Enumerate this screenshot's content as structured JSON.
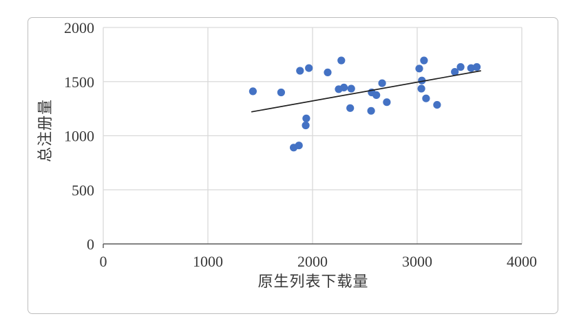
{
  "chart_data": {
    "type": "scatter",
    "xlabel": "原生列表下载量",
    "ylabel": "总注册量",
    "xlim": [
      0,
      4000
    ],
    "ylim": [
      0,
      2000
    ],
    "x_ticks": [
      0,
      1000,
      2000,
      3000,
      4000
    ],
    "y_ticks": [
      0,
      500,
      1000,
      1500,
      2000
    ],
    "grid": true,
    "legend": false,
    "series": [
      {
        "points": [
          [
            1430,
            1410
          ],
          [
            1700,
            1400
          ],
          [
            1820,
            890
          ],
          [
            1870,
            910
          ],
          [
            1880,
            1600
          ],
          [
            1935,
            1095
          ],
          [
            1940,
            1160
          ],
          [
            1965,
            1625
          ],
          [
            2145,
            1585
          ],
          [
            2250,
            1430
          ],
          [
            2275,
            1695
          ],
          [
            2300,
            1445
          ],
          [
            2360,
            1255
          ],
          [
            2370,
            1435
          ],
          [
            2560,
            1230
          ],
          [
            2565,
            1400
          ],
          [
            2610,
            1375
          ],
          [
            2665,
            1485
          ],
          [
            2710,
            1310
          ],
          [
            3020,
            1620
          ],
          [
            3040,
            1435
          ],
          [
            3045,
            1510
          ],
          [
            3065,
            1695
          ],
          [
            3085,
            1345
          ],
          [
            3190,
            1285
          ],
          [
            3360,
            1590
          ],
          [
            3415,
            1635
          ],
          [
            3515,
            1625
          ],
          [
            3570,
            1635
          ]
        ]
      }
    ],
    "trendline": {
      "x1": 1415,
      "y1": 1220,
      "x2": 3610,
      "y2": 1600
    }
  },
  "colors": {
    "marker": "#4472c4",
    "trendline": "#1f1f1f",
    "gridline": "#d9d9d9",
    "axis_line": "#595959",
    "text": "#393939",
    "frame_border": "#bdbdbd",
    "background": "#ffffff"
  }
}
